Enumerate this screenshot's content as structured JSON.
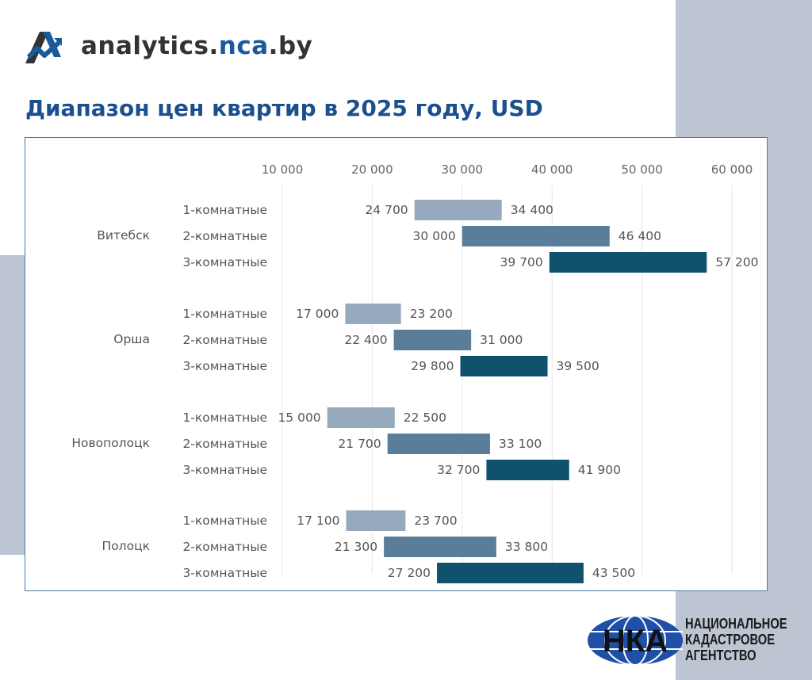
{
  "brand": {
    "site_prefix": "analytics.",
    "site_accent": "nca",
    "site_suffix": ".by"
  },
  "title": "Диапазон цен квартир в 2025 году, USD",
  "agency": {
    "line1": "НАЦИОНАЛЬНОЕ",
    "line2": "КАДАСТРОВОЕ",
    "line3": "АГЕНТСТВО",
    "logo_letters": "НКА"
  },
  "colors": {
    "title": "#1b4f8f",
    "accent": "#1a5a9a",
    "frame": "#4a7aa3",
    "bar_1room": "#97a9bc",
    "bar_2room": "#5a7d99",
    "bar_3room": "#10516d",
    "decor": "#bdc5d2"
  },
  "chart_data": {
    "type": "bar",
    "orientation": "horizontal-range",
    "title": "Диапазон цен квартир в 2025 году, USD",
    "x_ticks": [
      10000,
      20000,
      30000,
      40000,
      50000,
      60000
    ],
    "x_tick_labels": [
      "10 000",
      "20 000",
      "30 000",
      "40 000",
      "50 000",
      "60 000"
    ],
    "xlim": [
      10000,
      60000
    ],
    "grid": true,
    "series_labels": [
      "1-комнатные",
      "2-комнатные",
      "3-комнатные"
    ],
    "groups": [
      {
        "city": "Витебск",
        "rows": [
          {
            "label": "1-комнатные",
            "min": 24700,
            "max": 34400,
            "min_label": "24 700",
            "max_label": "34 400"
          },
          {
            "label": "2-комнатные",
            "min": 30000,
            "max": 46400,
            "min_label": "30 000",
            "max_label": "46 400"
          },
          {
            "label": "3-комнатные",
            "min": 39700,
            "max": 57200,
            "min_label": "39 700",
            "max_label": "57 200"
          }
        ]
      },
      {
        "city": "Орша",
        "rows": [
          {
            "label": "1-комнатные",
            "min": 17000,
            "max": 23200,
            "min_label": "17 000",
            "max_label": "23 200"
          },
          {
            "label": "2-комнатные",
            "min": 22400,
            "max": 31000,
            "min_label": "22 400",
            "max_label": "31 000"
          },
          {
            "label": "3-комнатные",
            "min": 29800,
            "max": 39500,
            "min_label": "29 800",
            "max_label": "39 500"
          }
        ]
      },
      {
        "city": "Новополоцк",
        "rows": [
          {
            "label": "1-комнатные",
            "min": 15000,
            "max": 22500,
            "min_label": "15 000",
            "max_label": "22 500"
          },
          {
            "label": "2-комнатные",
            "min": 21700,
            "max": 33100,
            "min_label": "21 700",
            "max_label": "33 100"
          },
          {
            "label": "3-комнатные",
            "min": 32700,
            "max": 41900,
            "min_label": "32 700",
            "max_label": "41 900"
          }
        ]
      },
      {
        "city": "Полоцк",
        "rows": [
          {
            "label": "1-комнатные",
            "min": 17100,
            "max": 23700,
            "min_label": "17 100",
            "max_label": "23 700"
          },
          {
            "label": "2-комнатные",
            "min": 21300,
            "max": 33800,
            "min_label": "21 300",
            "max_label": "33 800"
          },
          {
            "label": "3-комнатные",
            "min": 27200,
            "max": 43500,
            "min_label": "27 200",
            "max_label": "43 500"
          }
        ]
      }
    ]
  }
}
